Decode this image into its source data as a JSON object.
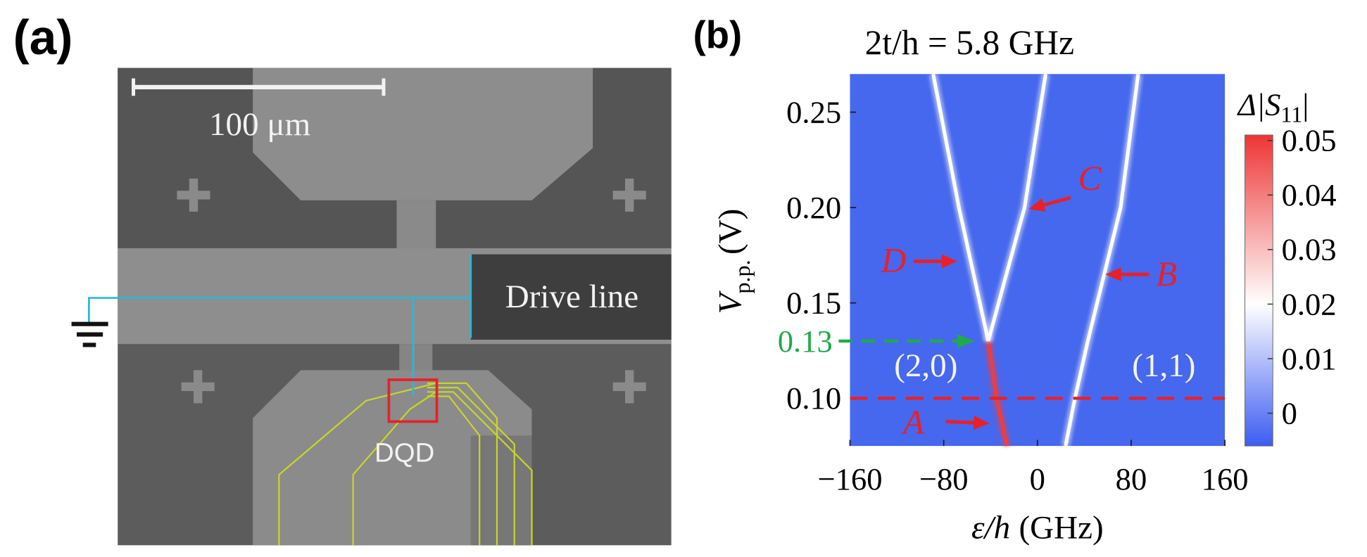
{
  "panel_a": {
    "label": "(a)",
    "scale_bar": "100 μm",
    "drive_line": "Drive line",
    "dqd": "DQD"
  },
  "chart_data": {
    "type": "heatmap",
    "panel_label": "(b)",
    "title": "2t/h = 5.8 GHz",
    "x_label": {
      "symbol": "ε/h",
      "unit": "(GHz)"
    },
    "y_label": {
      "symbol": "V",
      "subscript": "p.p.",
      "unit": "(V)"
    },
    "xlim": [
      -160,
      160
    ],
    "xticks": [
      {
        "value": -160,
        "label": "−160"
      },
      {
        "value": -80,
        "label": "−80"
      },
      0,
      80,
      160
    ],
    "ylim": [
      0.075,
      0.27
    ],
    "yticks": [
      {
        "value": 0.1,
        "label": "0.10"
      },
      0.15,
      {
        "value": 0.2,
        "label": "0.20"
      },
      0.25
    ],
    "background_color": "#4668ee",
    "y": [
      0.075,
      0.1,
      0.13,
      0.2,
      0.27
    ],
    "series": [
      {
        "color": "#f03c3c",
        "values": [
          -26,
          -35,
          -42,
          null,
          null
        ]
      },
      {
        "color": "#ffffff",
        "values": [
          24,
          32,
          43,
          71,
          86
        ]
      },
      {
        "color": "#ffffff",
        "values": [
          null,
          null,
          -42,
          -11,
          7
        ]
      },
      {
        "color": "#ffffff",
        "values": [
          null,
          null,
          -42,
          -67,
          -89
        ]
      }
    ],
    "hline": {
      "value": 0.1,
      "color": "#e8202a"
    },
    "marker": {
      "value": 0.13,
      "label": "0.13",
      "color": "#22a94a"
    },
    "annotations": [
      {
        "label": "A",
        "color": "#e8202a"
      },
      {
        "label": "B",
        "color": "#e8202a"
      },
      {
        "label": "C",
        "color": "#e8202a"
      },
      {
        "label": "D",
        "color": "#e8202a"
      }
    ],
    "regions": [
      "(2,0)",
      "(1,1)"
    ],
    "colorbar": {
      "label": {
        "symbol": "Δ|S",
        "subscript": "11",
        "end": "|"
      },
      "lim": [
        -0.006,
        0.051
      ],
      "ticks": [
        0,
        0.01,
        0.02,
        0.03,
        0.04,
        0.05
      ],
      "stops": [
        {
          "value": -0.006,
          "color": "#3d5cf2"
        },
        {
          "value": 0.02,
          "color": "#ffffff"
        },
        {
          "value": 0.051,
          "color": "#ee3535"
        }
      ]
    }
  }
}
